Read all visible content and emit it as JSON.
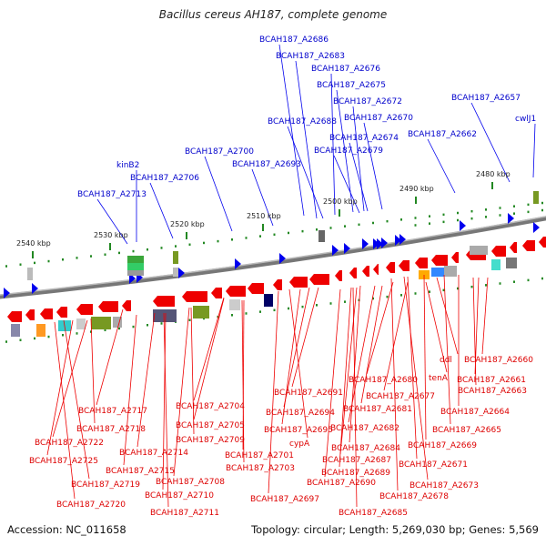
{
  "title": "Bacillus cereus AH187, complete genome",
  "footer": {
    "accession": "Accession: NC_011658",
    "summary": "Topology: circular; Length: 5,269,030 bp; Genes: 5,569"
  },
  "colors": {
    "forward_gene": "#0000ee",
    "reverse_gene": "#ee0000",
    "forward_label": "#0000cc",
    "reverse_label": "#dd0000",
    "backbone": "#777777",
    "tick": "#228822"
  },
  "coordinate_labels": [
    "2480 kbp",
    "2490 kbp",
    "2500 kbp",
    "2510 kbp",
    "2520 kbp",
    "2530 kbp",
    "2540 kbp"
  ],
  "forward_genes": [
    "BCAH187_A2686",
    "BCAH187_A2683",
    "BCAH187_A2676",
    "BCAH187_A2675",
    "BCAH187_A2672",
    "BCAH187_A2657",
    "BCAH187_A2688",
    "BCAH187_A2670",
    "cwlJ1",
    "BCAH187_A2674",
    "BCAH187_A2662",
    "BCAH187_A2679",
    "BCAH187_A2700",
    "kinB2",
    "BCAH187_A2693",
    "BCAH187_A2706",
    "BCAH187_A2713"
  ],
  "reverse_genes": [
    "ddl",
    "BCAH187_A2660",
    "tenA",
    "BCAH187_A2661",
    "BCAH187_A2680",
    "BCAH187_A2663",
    "BCAH187_A2677",
    "BCAH187_A2691",
    "BCAH187_A2704",
    "BCAH187_A2681",
    "BCAH187_A2664",
    "BCAH187_A2717",
    "BCAH187_A2694",
    "BCAH187_A2718",
    "BCAH187_A2705",
    "BCAH187_A2682",
    "BCAH187_A2665",
    "BCAH187_A2695",
    "BCAH187_A2722",
    "BCAH187_A2709",
    "cypA",
    "BCAH187_A2714",
    "BCAH187_A2684",
    "BCAH187_A2669",
    "BCAH187_A2725",
    "BCAH187_A2701",
    "BCAH187_A2687",
    "BCAH187_A2671",
    "BCAH187_A2715",
    "BCAH187_A2703",
    "BCAH187_A2689",
    "BCAH187_A2719",
    "BCAH187_A2708",
    "BCAH187_A2690",
    "BCAH187_A2673",
    "BCAH187_A2710",
    "BCAH187_A2697",
    "BCAH187_A2678",
    "BCAH187_A2720",
    "BCAH187_A2711",
    "BCAH187_A2685"
  ]
}
